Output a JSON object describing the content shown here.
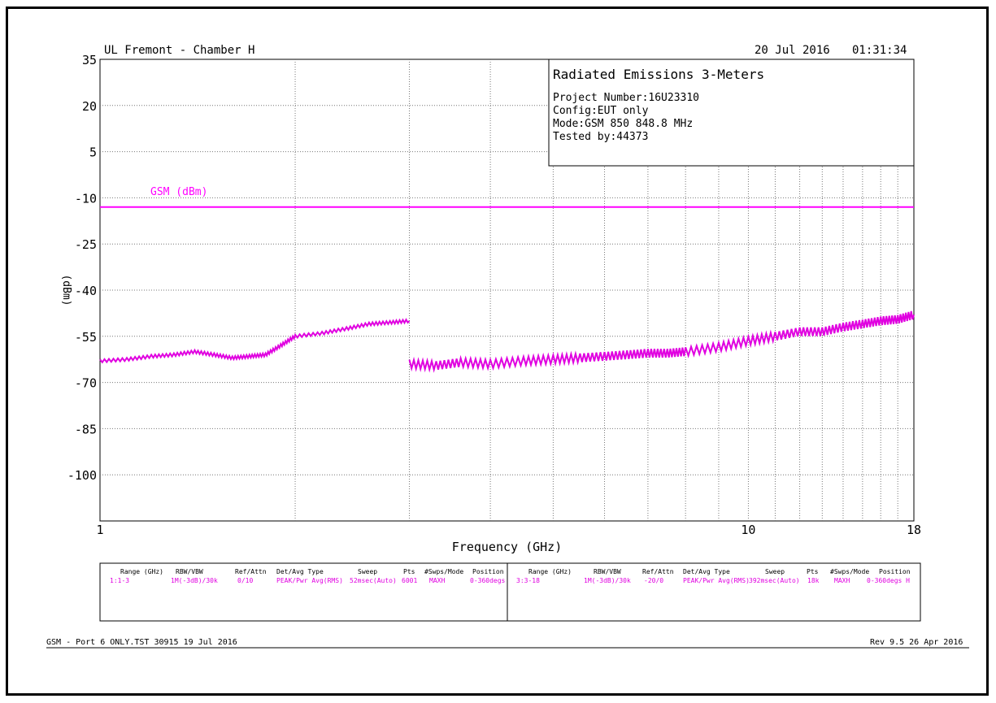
{
  "header": {
    "site": "UL Fremont - Chamber H",
    "date": "20 Jul 2016",
    "time": "01:31:34"
  },
  "info_box": {
    "title": "Radiated Emissions 3-Meters",
    "lines": [
      "Project Number:16U23310",
      "Config:EUT only",
      "Mode:GSM 850 848.8 MHz",
      "Tested by:44373"
    ]
  },
  "chart_data": {
    "type": "line",
    "title": "",
    "xlabel": "Frequency (GHz)",
    "ylabel": "(dBm)",
    "x_scale": "log",
    "xlim": [
      1,
      18
    ],
    "ylim": [
      -115,
      35
    ],
    "x_ticks": [
      1,
      10,
      18
    ],
    "y_ticks": [
      35,
      20,
      5,
      -10,
      -25,
      -40,
      -55,
      -70,
      -85,
      -100
    ],
    "grid": true,
    "limit_line": {
      "name": "GSM (dBm)",
      "value": -13,
      "color": "#ff00ff"
    },
    "series": [
      {
        "color": "#e000e0",
        "x": [
          1.0,
          1.1,
          1.2,
          1.3,
          1.4,
          1.5,
          1.6,
          1.7,
          1.8,
          1.9,
          2.0,
          2.2,
          2.4,
          2.6,
          2.8,
          3.0
        ],
        "y": [
          -63,
          -62.5,
          -61.5,
          -61,
          -60,
          -61,
          -62,
          -61.5,
          -61,
          -58,
          -55,
          -54,
          -52.5,
          -51,
          -50.5,
          -50
        ]
      },
      {
        "color": "#e000e0",
        "x": [
          3.0,
          3.3,
          3.6,
          4.0,
          4.5,
          5.0,
          5.5,
          6.0,
          6.5,
          7.0,
          7.5,
          8.0,
          9.0,
          10.0,
          11.0,
          12.0,
          13.0,
          14.0,
          15.0,
          16.0,
          17.0,
          18.0
        ],
        "y": [
          -64,
          -64.5,
          -63.5,
          -64,
          -63,
          -62.5,
          -62,
          -61.5,
          -61,
          -60.5,
          -60.5,
          -60,
          -58.5,
          -56.5,
          -55,
          -53.5,
          -53.5,
          -52,
          -51,
          -50,
          -49.5,
          -48
        ]
      }
    ]
  },
  "settings_table": {
    "headers": [
      "Range (GHz)",
      "RBW/VBW",
      "Ref/Attn",
      "Det/Avg Type",
      "Sweep",
      "Pts",
      "#Swps/Mode",
      "Position"
    ],
    "rows": [
      [
        "1:1-3",
        "1M(-3dB)/30k",
        "0/10",
        "PEAK/Pwr Avg(RMS)",
        "52msec(Auto)",
        "6001",
        "MAXH",
        "0-360degs"
      ],
      [
        "3:3-18",
        "1M(-3dB)/30k",
        "-20/0",
        "PEAK/Pwr Avg(RMS)",
        "392msec(Auto)",
        "18k",
        "MAXH",
        "0-360degs H"
      ]
    ]
  },
  "footer": {
    "left": "GSM - Port 6 ONLY.TST 30915 19 Jul 2016",
    "right": "Rev 9.5 26 Apr 2016"
  }
}
